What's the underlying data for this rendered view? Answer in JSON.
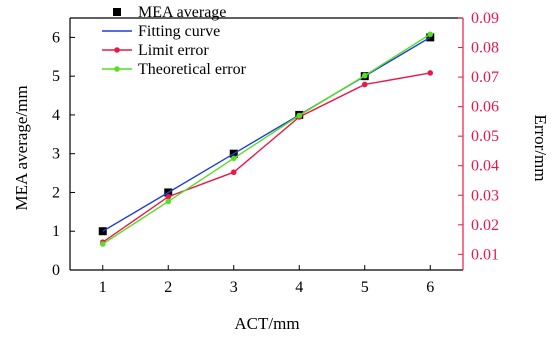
{
  "chart_data": {
    "type": "line",
    "xlabel": "ACT/mm",
    "ylabel_left": "MEA average/mm",
    "ylabel_right": "Error/mm",
    "x": [
      1,
      2,
      3,
      4,
      5,
      6
    ],
    "x_ticks": [
      "1",
      "2",
      "3",
      "4",
      "5",
      "6"
    ],
    "xlim": [
      0.5,
      6.5
    ],
    "ylim_left": [
      0,
      6.5
    ],
    "y_ticks_left": [
      "0",
      "1",
      "2",
      "3",
      "4",
      "5",
      "6"
    ],
    "ylim_right": [
      0.0047,
      0.09
    ],
    "y_ticks_right": [
      "0.01",
      "0.02",
      "0.03",
      "0.04",
      "0.05",
      "0.06",
      "0.07",
      "0.08",
      "0.09"
    ],
    "grid": false,
    "legend_position": "top-left",
    "legend": [
      "MEA average",
      "Fitting curve",
      "Limit error",
      "Theoretical error"
    ],
    "series": [
      {
        "name": "MEA average",
        "axis": "left",
        "style": "markers-square",
        "color": "#000000",
        "values": [
          1.0,
          2.0,
          3.0,
          4.0,
          5.0,
          6.0
        ]
      },
      {
        "name": "Fitting curve",
        "axis": "left",
        "style": "line",
        "color": "#1f3fd8",
        "values": [
          1.0,
          2.0,
          3.0,
          4.0,
          5.0,
          6.0
        ]
      },
      {
        "name": "Limit error",
        "axis": "right",
        "style": "line-dots",
        "color": "#e8194a",
        "values": [
          0.0141,
          0.0295,
          0.0378,
          0.0565,
          0.0675,
          0.0714
        ]
      },
      {
        "name": "Theoretical error",
        "axis": "right",
        "style": "line-dots",
        "color": "#55e021",
        "values": [
          0.0135,
          0.0279,
          0.0425,
          0.057,
          0.0705,
          0.0845
        ]
      }
    ],
    "colors": {
      "right_axis": "#e8194a"
    }
  }
}
